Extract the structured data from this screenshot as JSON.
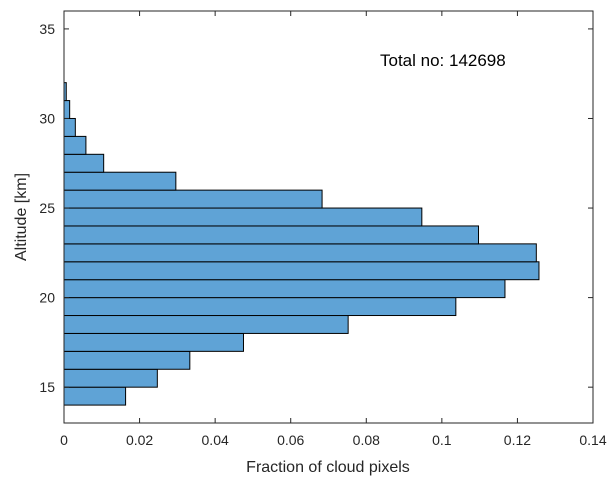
{
  "chart_data": {
    "type": "bar",
    "orientation": "horizontal",
    "bin_width": 1,
    "y": [
      14.5,
      15.5,
      16.5,
      17.5,
      18.5,
      19.5,
      20.5,
      21.5,
      22.5,
      23.5,
      24.5,
      25.5,
      26.5,
      27.5,
      28.5,
      29.5,
      30.5,
      31.5
    ],
    "values": [
      0.0163,
      0.0247,
      0.0333,
      0.0475,
      0.0752,
      0.1037,
      0.1167,
      0.1257,
      0.125,
      0.1097,
      0.0947,
      0.0683,
      0.0296,
      0.0105,
      0.0058,
      0.003,
      0.0015,
      0.0006
    ],
    "xlabel": "Fraction of cloud pixels",
    "ylabel": "Altitude [km]",
    "xlim": [
      0,
      0.14
    ],
    "ylim": [
      13,
      36
    ],
    "xticks": [
      0,
      0.02,
      0.04,
      0.06,
      0.08,
      0.1,
      0.12,
      0.14
    ],
    "xtick_labels": [
      "0",
      "0.02",
      "0.04",
      "0.06",
      "0.08",
      "0.1",
      "0.12",
      "0.14"
    ],
    "yticks": [
      15,
      20,
      25,
      30,
      35
    ],
    "ytick_labels": [
      "15",
      "20",
      "25",
      "30",
      "35"
    ],
    "annotation": "Total no: 142698",
    "bar_color": "#5fa3d6",
    "edge_color": "#000000",
    "grid": false
  }
}
